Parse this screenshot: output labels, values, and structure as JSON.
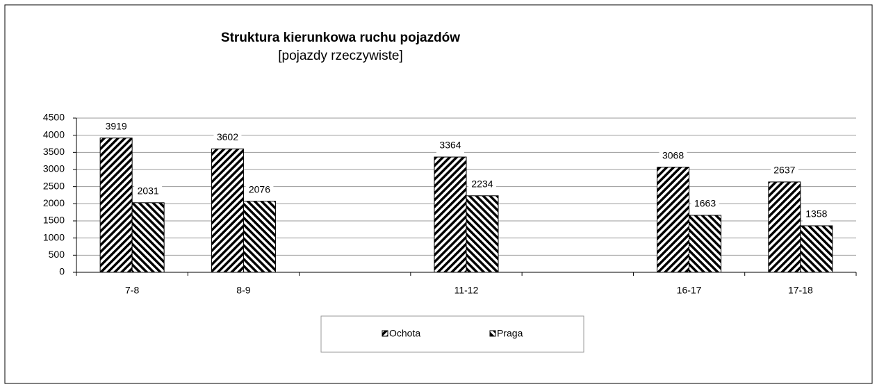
{
  "chart_data": {
    "type": "bar",
    "title": "Struktura kierunkowa ruchu pojazdów",
    "subtitle": "[pojazdy rzeczywiste]",
    "categories": [
      "7-8",
      "8-9",
      null,
      "11-12",
      null,
      "16-17",
      "17-18"
    ],
    "series": [
      {
        "name": "Ochota",
        "color": "#000000",
        "values": [
          3919,
          3602,
          null,
          3364,
          null,
          3068,
          2637
        ]
      },
      {
        "name": "Praga",
        "color": "#000000",
        "values": [
          2031,
          2076,
          null,
          2234,
          null,
          1663,
          1358
        ]
      }
    ],
    "ylim": [
      0,
      4500
    ],
    "yticks": [
      0,
      500,
      1000,
      1500,
      2000,
      2500,
      3000,
      3500,
      4000,
      4500
    ],
    "grid": true,
    "legend": "bottom"
  }
}
